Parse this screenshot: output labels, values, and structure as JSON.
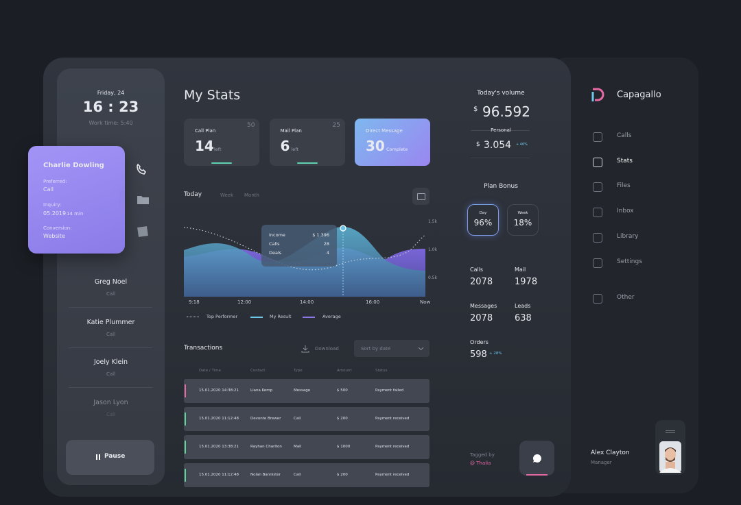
{
  "clock": {
    "date": "Friday, 24",
    "time": "16 : 23",
    "work_time": "Work time: 5:40"
  },
  "contact_card": {
    "name": "Charlie Dowling",
    "preferred_label": "Preferred:",
    "preferred": "Call",
    "inquiry_label": "Inquiry:",
    "inquiry_date": "05.2019",
    "inquiry_duration": "14 min",
    "conversion_label": "Conversion:",
    "conversion": "Website"
  },
  "contacts": [
    {
      "name": "Greg Noel",
      "type": "Call"
    },
    {
      "name": "Katie Plummer",
      "type": "Call"
    },
    {
      "name": "Joely Klein",
      "type": "Call"
    },
    {
      "name": "Jason Lyon",
      "type": "Call"
    }
  ],
  "pause": "Pause",
  "title": "My Stats",
  "plans": [
    {
      "name": "Call Plan",
      "total": 50,
      "value": 14,
      "note": "left"
    },
    {
      "name": "Mail Plan",
      "total": 25,
      "value": 6,
      "note": "left"
    },
    {
      "name": "Direct Message",
      "value": 30,
      "note": "Complete"
    }
  ],
  "tabs": [
    "Today",
    "Week",
    "Month"
  ],
  "chart": {
    "y_labels": [
      "1.5k",
      "1.0k",
      "0.5k"
    ],
    "x_labels": [
      "9:18",
      "12:00",
      "14:00",
      "16:00",
      "Now"
    ],
    "tooltip": [
      {
        "label": "Income",
        "value": "$ 1.396"
      },
      {
        "label": "Calls",
        "value": 28
      },
      {
        "label": "Deals",
        "value": 4
      }
    ],
    "legend": [
      "Top Performer",
      "My Result",
      "Average"
    ]
  },
  "transactions": {
    "title": "Transactions",
    "download": "Download",
    "sort": "Sort by date",
    "columns": [
      "Date / Time",
      "Contact",
      "Type",
      "Amount",
      "Status"
    ],
    "rows": [
      [
        "15.01.2020 14:38:21",
        "Liana Kemp",
        "Message",
        "$ 500",
        "Payment failed"
      ],
      [
        "15.01.2020 11:12:48",
        "Devonte Brewer",
        "Call",
        "$ 200",
        "Payment received"
      ],
      [
        "15.01.2020 13:38:21",
        "Rayhan Charlton",
        "Mail",
        "$ 1000",
        "Payment received"
      ],
      [
        "15.01.2020 11:12:48",
        "Nolan Bannister",
        "Call",
        "$ 200",
        "Payment received"
      ]
    ]
  },
  "volume": {
    "title": "Today's volume",
    "currency": "$",
    "total": "96.592",
    "personal_label": "Personal",
    "personal": "3.054",
    "change": "+ 46%"
  },
  "plan_bonus": {
    "title": "Plan Bonus",
    "items": [
      {
        "label": "Day",
        "value": "96%"
      },
      {
        "label": "Week",
        "value": "18%"
      }
    ]
  },
  "metrics": [
    {
      "label": "Calls",
      "value": 2078
    },
    {
      "label": "Mail",
      "value": 1978
    },
    {
      "label": "Messages",
      "value": 2078
    },
    {
      "label": "Leads",
      "value": 638
    },
    {
      "label": "Orders",
      "value": 598,
      "change": "+ 28%"
    }
  ],
  "tagged": {
    "label": "Tagged by",
    "user": "@ Thalia"
  },
  "brand": "Capagallo",
  "nav": [
    "Calls",
    "Stats",
    "Files",
    "Inbox",
    "Library",
    "Settings",
    "Other"
  ],
  "user": {
    "name": "Alex Clayton",
    "role": "Manager"
  }
}
